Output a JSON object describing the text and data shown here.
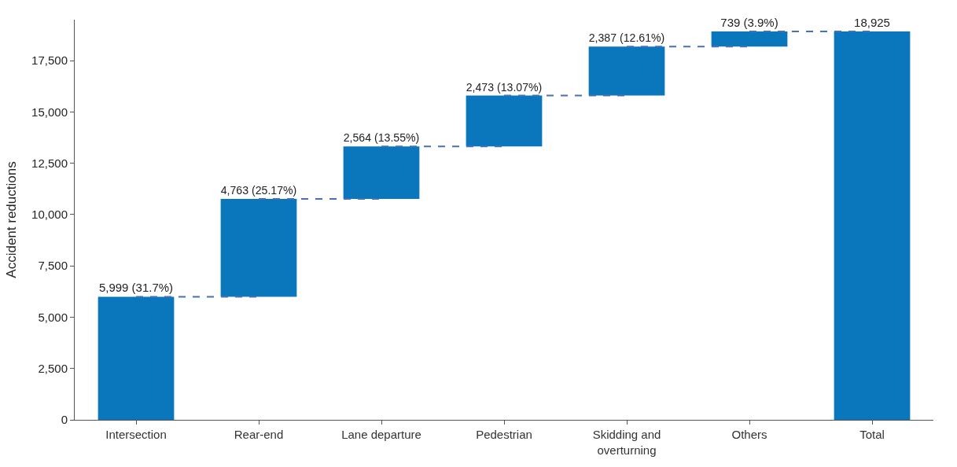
{
  "chart_data": {
    "type": "bar",
    "ylabel": "Accident reductions",
    "categories": [
      "Intersection",
      "Rear-end",
      "Lane departure",
      "Pedestrian",
      "Skidding and overturning",
      "Others",
      "Total"
    ],
    "values": [
      5999,
      4763,
      2564,
      2473,
      2387,
      739,
      18925
    ],
    "base": [
      0,
      5999,
      10762,
      13326,
      15799,
      18186,
      0
    ],
    "value_labels": [
      "5,999 (31.7%)",
      "4,763 (25.17%)",
      "2,564 (13.55%)",
      "2,473 (13.07%)",
      "2,387 (12.61%)",
      "739 (3.9%)",
      "18,925"
    ],
    "color": "#0a77bd",
    "ylim": [
      0,
      19500
    ],
    "yticks": [
      {
        "value": 0,
        "label": "0"
      },
      {
        "value": 2500,
        "label": "2,500"
      },
      {
        "value": 5000,
        "label": "5,000"
      },
      {
        "value": 7500,
        "label": "7,500"
      },
      {
        "value": 10000,
        "label": "10,000"
      },
      {
        "value": 12500,
        "label": "12,500"
      },
      {
        "value": 15000,
        "label": "15,000"
      },
      {
        "value": 17500,
        "label": "17,500"
      }
    ]
  }
}
